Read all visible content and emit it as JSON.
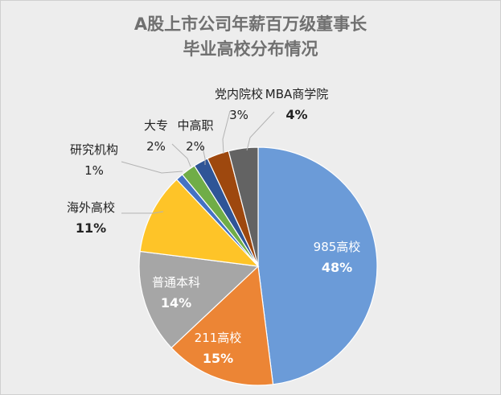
{
  "chart_data": {
    "type": "pie",
    "title_line1": "A股上市公司年薪百万级董事长",
    "title_line2": "毕业高校分布情况",
    "slices": [
      {
        "name": "985高校",
        "label": "48%",
        "value": 48,
        "color": "#6b9bd8"
      },
      {
        "name": "211高校",
        "label": "15%",
        "value": 15,
        "color": "#ec8535"
      },
      {
        "name": "普通本科",
        "label": "14%",
        "value": 14,
        "color": "#a6a6a6"
      },
      {
        "name": "海外高校",
        "label": "11%",
        "value": 11,
        "color": "#fec428"
      },
      {
        "name": "研究机构",
        "label": "1%",
        "value": 1,
        "color": "#4472c4"
      },
      {
        "name": "大专",
        "label": "2%",
        "value": 2,
        "color": "#70ad47"
      },
      {
        "name": "中高职",
        "label": "2%",
        "value": 2,
        "color": "#2f5597"
      },
      {
        "name": "党内院校",
        "label": "3%",
        "value": 3,
        "color": "#9e480e"
      },
      {
        "name": "MBA商学院",
        "label": "4%",
        "value": 4,
        "color": "#636363"
      }
    ],
    "start_angle_deg": 0,
    "direction": "clockwise",
    "legend": "none"
  }
}
